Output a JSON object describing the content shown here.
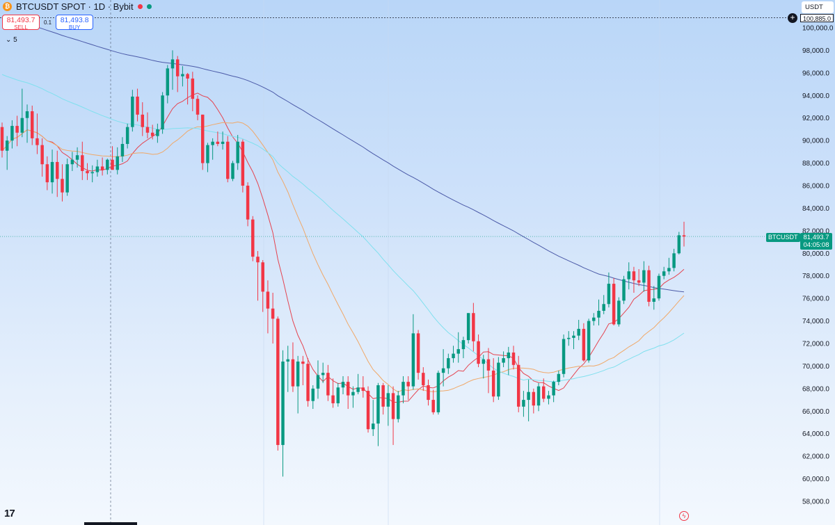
{
  "header": {
    "symbol_title": "BTCUSDT SPOT · 1D · Bybit",
    "coin_icon": "bitcoin-icon",
    "status_colors": [
      "#f23645",
      "#089981"
    ]
  },
  "trade": {
    "sell_price": "81,493.7",
    "sell_label": "SELL",
    "quantity": "0.1",
    "buy_price": "81,493.8",
    "buy_label": "BUY"
  },
  "indicator_toggle": "5",
  "currency": "USDT",
  "price_axis": {
    "top_label": "100,885.0",
    "symbol_badge": "BTCUSDT",
    "last_price": "81,493.7",
    "countdown": "04:05:08"
  },
  "colors": {
    "up": "#089981",
    "down": "#f23645",
    "ma_red": "#e5434f",
    "ma_orange": "#f0a868",
    "ma_cyan": "#7fe0ee",
    "ma_blue": "#4b5aa8"
  },
  "chart_data": {
    "type": "candlestick",
    "ylim": [
      57000,
      101800
    ],
    "y_ticks": [
      100000,
      98000,
      96000,
      94000,
      92000,
      90000,
      88000,
      86000,
      84000,
      82000,
      80000,
      78000,
      76000,
      74000,
      72000,
      70000,
      68000,
      66000,
      64000,
      62000,
      60000,
      58000
    ],
    "y_tick_labels": [
      "100,000.0",
      "98,000.0",
      "96,000.0",
      "94,000.0",
      "92,000.0",
      "90,000.0",
      "88,000.0",
      "86,000.0",
      "84,000.0",
      "82,000.0",
      "80,000.0",
      "78,000.0",
      "76,000.0",
      "74,000.0",
      "72,000.0",
      "70,000.0",
      "68,000.0",
      "66,000.0",
      "64,000.0",
      "62,000.0",
      "60,000.0",
      "58,000.0"
    ],
    "dotted_lines": [
      100885,
      81493.7
    ],
    "candles": [
      [
        91200,
        91600,
        88500,
        89100
      ],
      [
        89100,
        90400,
        87400,
        90000
      ],
      [
        90000,
        91800,
        89300,
        91300
      ],
      [
        91300,
        92200,
        89500,
        90700
      ],
      [
        90700,
        94600,
        90300,
        92000
      ],
      [
        92000,
        93200,
        89800,
        92600
      ],
      [
        92600,
        93100,
        89600,
        90200
      ],
      [
        90200,
        92400,
        88800,
        89600
      ],
      [
        89600,
        90200,
        86800,
        87900
      ],
      [
        87900,
        88600,
        85600,
        86300
      ],
      [
        86300,
        89200,
        85300,
        88100
      ],
      [
        88100,
        89100,
        85000,
        86600
      ],
      [
        86600,
        87900,
        84600,
        85400
      ],
      [
        85400,
        88400,
        85100,
        87900
      ],
      [
        87900,
        89000,
        87300,
        88300
      ],
      [
        88300,
        89400,
        87600,
        88700
      ],
      [
        88700,
        89900,
        86500,
        87300
      ],
      [
        87300,
        88000,
        86500,
        87100
      ],
      [
        87100,
        87800,
        86300,
        87200
      ],
      [
        87200,
        88300,
        86800,
        87700
      ],
      [
        87700,
        88500,
        86900,
        87400
      ],
      [
        87400,
        88400,
        87000,
        88300
      ],
      [
        88300,
        89500,
        87700,
        87400
      ],
      [
        87400,
        89400,
        87000,
        88600
      ],
      [
        88600,
        90300,
        88100,
        89700
      ],
      [
        89700,
        91500,
        89300,
        91200
      ],
      [
        91200,
        94500,
        90800,
        93900
      ],
      [
        93900,
        94600,
        91700,
        92300
      ],
      [
        92300,
        93400,
        90400,
        91200
      ],
      [
        91200,
        92500,
        90200,
        90700
      ],
      [
        90700,
        91400,
        90100,
        90400
      ],
      [
        90400,
        91500,
        89800,
        91000
      ],
      [
        91000,
        94300,
        90600,
        94000
      ],
      [
        94000,
        96700,
        93300,
        96400
      ],
      [
        96400,
        98000,
        94500,
        97200
      ],
      [
        97200,
        97500,
        94300,
        95700
      ],
      [
        95700,
        96600,
        94800,
        95900
      ],
      [
        95900,
        96000,
        93200,
        95500
      ],
      [
        95500,
        96100,
        92600,
        93700
      ],
      [
        93700,
        94000,
        91800,
        92300
      ],
      [
        92300,
        92300,
        87400,
        88000
      ],
      [
        88000,
        89800,
        87200,
        89600
      ],
      [
        89600,
        90200,
        88300,
        89900
      ],
      [
        89900,
        90800,
        89500,
        89700
      ],
      [
        89700,
        90800,
        89200,
        89900
      ],
      [
        89900,
        90400,
        86300,
        86600
      ],
      [
        86600,
        88200,
        86400,
        88000
      ],
      [
        88000,
        90500,
        87400,
        89900
      ],
      [
        89900,
        90100,
        85400,
        86000
      ],
      [
        86000,
        86300,
        82400,
        83000
      ],
      [
        83000,
        83300,
        79300,
        79700
      ],
      [
        79700,
        80200,
        75800,
        79200
      ],
      [
        79200,
        79400,
        74800,
        76600
      ],
      [
        76600,
        77600,
        72900,
        75100
      ],
      [
        75100,
        76500,
        72000,
        74200
      ],
      [
        74200,
        74400,
        62500,
        63000
      ],
      [
        63000,
        71400,
        60200,
        70400
      ],
      [
        70400,
        71800,
        67700,
        70600
      ],
      [
        70600,
        72100,
        67700,
        68200
      ],
      [
        68200,
        70900,
        65800,
        70400
      ],
      [
        70400,
        70900,
        68300,
        70200
      ],
      [
        70200,
        70700,
        66400,
        66900
      ],
      [
        66900,
        68300,
        66200,
        68000
      ],
      [
        68000,
        70500,
        67100,
        69200
      ],
      [
        69200,
        70300,
        68500,
        69400
      ],
      [
        69400,
        70100,
        66900,
        67400
      ],
      [
        67400,
        68900,
        66300,
        66700
      ],
      [
        66700,
        68500,
        66400,
        68100
      ],
      [
        68100,
        69100,
        67500,
        68600
      ],
      [
        68600,
        69100,
        66200,
        67400
      ],
      [
        67400,
        68200,
        66300,
        67700
      ],
      [
        67700,
        69300,
        67500,
        68100
      ],
      [
        68100,
        69100,
        67200,
        67800
      ],
      [
        67800,
        68200,
        64100,
        64400
      ],
      [
        64400,
        67000,
        63800,
        64900
      ],
      [
        64900,
        68500,
        62900,
        68300
      ],
      [
        68300,
        68500,
        65700,
        66400
      ],
      [
        66400,
        68300,
        64700,
        67600
      ],
      [
        67600,
        68200,
        63000,
        65300
      ],
      [
        65300,
        67800,
        65000,
        67400
      ],
      [
        67400,
        69100,
        66700,
        68600
      ],
      [
        68600,
        69100,
        67000,
        68200
      ],
      [
        68200,
        74600,
        67900,
        72900
      ],
      [
        72900,
        73200,
        68800,
        69400
      ],
      [
        69400,
        69900,
        67800,
        68300
      ],
      [
        68300,
        68800,
        66500,
        67000
      ],
      [
        67000,
        67900,
        65700,
        65900
      ],
      [
        65900,
        69600,
        65700,
        69400
      ],
      [
        69400,
        71500,
        68200,
        69800
      ],
      [
        69800,
        71100,
        69300,
        70700
      ],
      [
        70700,
        71800,
        70300,
        71100
      ],
      [
        71100,
        73000,
        70300,
        71500
      ],
      [
        71500,
        72600,
        70700,
        72300
      ],
      [
        72300,
        74700,
        72000,
        74700
      ],
      [
        74700,
        75600,
        71300,
        72200
      ],
      [
        72200,
        72800,
        69900,
        70200
      ],
      [
        70200,
        71000,
        68900,
        70600
      ],
      [
        70600,
        71600,
        67600,
        69600
      ],
      [
        69600,
        70700,
        66800,
        67300
      ],
      [
        67300,
        70800,
        67000,
        70300
      ],
      [
        70300,
        71300,
        69900,
        70700
      ],
      [
        70700,
        71700,
        69200,
        71200
      ],
      [
        71200,
        71800,
        69700,
        70100
      ],
      [
        70100,
        70900,
        65900,
        66400
      ],
      [
        66400,
        67800,
        65500,
        67000
      ],
      [
        67000,
        68800,
        65100,
        67700
      ],
      [
        67700,
        68000,
        65800,
        66500
      ],
      [
        66500,
        68500,
        66000,
        68200
      ],
      [
        68200,
        68900,
        66800,
        67100
      ],
      [
        67100,
        67800,
        66600,
        67400
      ],
      [
        67400,
        68700,
        66800,
        68600
      ],
      [
        68600,
        69600,
        68300,
        69300
      ],
      [
        69300,
        72800,
        69000,
        72400
      ],
      [
        72400,
        73100,
        71800,
        72500
      ],
      [
        72500,
        73100,
        71500,
        72700
      ],
      [
        72700,
        74100,
        72300,
        73300
      ],
      [
        73300,
        73800,
        70400,
        70500
      ],
      [
        70500,
        74200,
        70300,
        74000
      ],
      [
        74000,
        74700,
        73600,
        74300
      ],
      [
        74300,
        75900,
        73600,
        74900
      ],
      [
        74900,
        76300,
        74600,
        75500
      ],
      [
        75500,
        78300,
        75200,
        77300
      ],
      [
        77300,
        77800,
        73600,
        73700
      ],
      [
        73700,
        76100,
        73500,
        75800
      ],
      [
        75800,
        78000,
        75500,
        77700
      ],
      [
        77700,
        79200,
        76800,
        78400
      ],
      [
        78400,
        78800,
        76500,
        77600
      ],
      [
        77600,
        78600,
        77100,
        77400
      ],
      [
        77400,
        79300,
        76600,
        78500
      ],
      [
        78500,
        78900,
        75300,
        75700
      ],
      [
        75700,
        77100,
        75000,
        76000
      ],
      [
        76000,
        78200,
        75800,
        78000
      ],
      [
        78000,
        78800,
        77700,
        78400
      ],
      [
        78400,
        79600,
        78100,
        78700
      ],
      [
        78700,
        80400,
        78400,
        80000
      ],
      [
        80000,
        81900,
        79900,
        81600
      ],
      [
        81600,
        82800,
        80600,
        81494
      ]
    ]
  }
}
